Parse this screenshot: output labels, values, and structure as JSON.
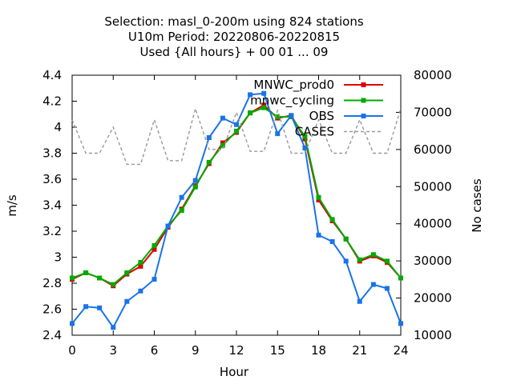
{
  "chart_data": {
    "type": "line",
    "title_lines": [
      "Selection: masl_0-200m using   824 stations",
      "U10m   Period: 20220806-20220815",
      "Used {All hours} + 00 01 ... 09"
    ],
    "xlabel": "Hour",
    "ylabel": "m/s",
    "y2label": "No cases",
    "xlim": [
      0,
      24
    ],
    "ylim": [
      2.4,
      4.4
    ],
    "y2lim": [
      10000,
      80000
    ],
    "xticks": [
      0,
      3,
      6,
      9,
      12,
      15,
      18,
      21,
      24
    ],
    "yticks": [
      2.4,
      2.6,
      2.8,
      3,
      3.2,
      3.4,
      3.6,
      3.8,
      4,
      4.2,
      4.4
    ],
    "y2ticks": [
      10000,
      20000,
      30000,
      40000,
      50000,
      60000,
      70000,
      80000
    ],
    "legend_position": "top-right",
    "x": [
      0,
      1,
      2,
      3,
      4,
      5,
      6,
      7,
      8,
      9,
      10,
      11,
      12,
      13,
      14,
      15,
      16,
      17,
      18,
      19,
      20,
      21,
      22,
      23,
      24
    ],
    "series": [
      {
        "name": "MNWC_prod0",
        "color": "#dd0000",
        "axis": "left",
        "style": "line-points",
        "values": [
          2.83,
          2.88,
          2.84,
          2.78,
          2.87,
          2.93,
          3.06,
          3.23,
          3.37,
          3.55,
          3.72,
          3.88,
          3.96,
          4.11,
          4.17,
          4.07,
          4.09,
          3.91,
          3.44,
          3.28,
          3.14,
          2.97,
          3.01,
          2.96,
          2.84
        ]
      },
      {
        "name": "mnwc_cycling",
        "color": "#00aa00",
        "axis": "left",
        "style": "line-points",
        "values": [
          2.84,
          2.88,
          2.84,
          2.79,
          2.88,
          2.96,
          3.09,
          3.24,
          3.36,
          3.54,
          3.73,
          3.86,
          3.97,
          4.11,
          4.15,
          4.08,
          4.08,
          3.93,
          3.46,
          3.29,
          3.14,
          2.98,
          3.02,
          2.97,
          2.84
        ]
      },
      {
        "name": "OBS",
        "color": "#1a73e8",
        "axis": "left",
        "style": "line-points",
        "values": [
          2.49,
          2.62,
          2.61,
          2.46,
          2.66,
          2.74,
          2.83,
          3.24,
          3.46,
          3.59,
          3.92,
          4.07,
          4.02,
          4.25,
          4.26,
          3.95,
          4.09,
          3.84,
          3.17,
          3.12,
          2.97,
          2.66,
          2.79,
          2.76,
          2.49
        ]
      },
      {
        "name": "CASES",
        "color": "#999999",
        "axis": "right",
        "style": "dashed",
        "values": [
          68000,
          59000,
          59000,
          66000,
          56000,
          56000,
          68000,
          57000,
          57000,
          71000,
          60000,
          60000,
          70000,
          59500,
          59500,
          70500,
          59000,
          59000,
          68000,
          59000,
          59000,
          68000,
          59000,
          59000,
          71000
        ]
      }
    ]
  }
}
